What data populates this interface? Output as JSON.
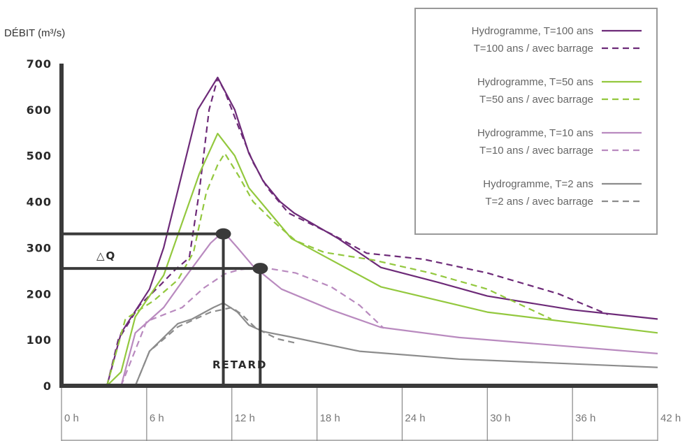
{
  "chart_data": {
    "type": "line",
    "ylabel": "DÉBIT (m³/s)",
    "xlabel": "",
    "ylim": [
      0,
      700
    ],
    "xlim": [
      0,
      42
    ],
    "yticks": [
      0,
      100,
      200,
      300,
      400,
      500,
      600,
      700
    ],
    "xticks": [
      {
        "value": 0,
        "label": "0 h"
      },
      {
        "value": 6,
        "label": "6 h"
      },
      {
        "value": 12,
        "label": "12 h"
      },
      {
        "value": 18,
        "label": "18 h"
      },
      {
        "value": 24,
        "label": "24 h"
      },
      {
        "value": 30,
        "label": "30 h"
      },
      {
        "value": 36,
        "label": "36 h"
      },
      {
        "value": 42,
        "label": "42 h"
      }
    ],
    "legend_position": "top-right",
    "grid": false,
    "series": [
      {
        "name": "Hydrogramme, T=100 ans",
        "color": "#6d2a78",
        "dash": false,
        "points": [
          [
            3.2,
            0
          ],
          [
            4.2,
            115
          ],
          [
            6.2,
            210
          ],
          [
            7.2,
            300
          ],
          [
            9.6,
            600
          ],
          [
            11.0,
            670
          ],
          [
            12.2,
            600
          ],
          [
            13.2,
            505
          ],
          [
            14.2,
            445
          ],
          [
            15.4,
            400
          ],
          [
            16.4,
            375
          ],
          [
            19.5,
            320
          ],
          [
            22.5,
            257
          ],
          [
            26.5,
            225
          ],
          [
            30.0,
            195
          ],
          [
            36.0,
            165
          ],
          [
            42.0,
            145
          ]
        ]
      },
      {
        "name": "T=100 ans / avec barrage",
        "color": "#6d2a78",
        "dash": true,
        "points": [
          [
            3.2,
            0
          ],
          [
            4.0,
            100
          ],
          [
            5.5,
            175
          ],
          [
            7.0,
            220
          ],
          [
            8.0,
            252
          ],
          [
            9.0,
            278
          ],
          [
            9.7,
            420
          ],
          [
            10.4,
            600
          ],
          [
            11.0,
            668
          ],
          [
            11.5,
            640
          ],
          [
            12.5,
            560
          ],
          [
            13.5,
            485
          ],
          [
            14.5,
            430
          ],
          [
            16.0,
            375
          ],
          [
            19.0,
            330
          ],
          [
            21.5,
            288
          ],
          [
            25.5,
            275
          ],
          [
            30.0,
            245
          ],
          [
            35.0,
            200
          ],
          [
            38.5,
            155
          ]
        ]
      },
      {
        "name": "Hydrogramme, T=50 ans",
        "color": "#93c83e",
        "dash": false,
        "points": [
          [
            3.2,
            0
          ],
          [
            4.2,
            30
          ],
          [
            5.2,
            150
          ],
          [
            7.2,
            240
          ],
          [
            9.7,
            460
          ],
          [
            11.0,
            548
          ],
          [
            12.2,
            500
          ],
          [
            13.2,
            430
          ],
          [
            14.7,
            375
          ],
          [
            16.2,
            320
          ],
          [
            17.7,
            295
          ],
          [
            22.5,
            215
          ],
          [
            30.0,
            160
          ],
          [
            42.0,
            115
          ]
        ]
      },
      {
        "name": "T=50 ans / avec barrage",
        "color": "#93c83e",
        "dash": true,
        "points": [
          [
            3.2,
            0
          ],
          [
            4.5,
            145
          ],
          [
            6.5,
            185
          ],
          [
            8.2,
            230
          ],
          [
            9.3,
            290
          ],
          [
            10.2,
            420
          ],
          [
            11.0,
            480
          ],
          [
            11.5,
            505
          ],
          [
            12.5,
            455
          ],
          [
            13.5,
            400
          ],
          [
            15.0,
            355
          ],
          [
            16.5,
            315
          ],
          [
            18.5,
            290
          ],
          [
            22.0,
            273
          ],
          [
            26.0,
            245
          ],
          [
            30.0,
            210
          ],
          [
            34.5,
            145
          ]
        ]
      },
      {
        "name": "Hydrogramme, T=10 ans",
        "color": "#b98abf",
        "dash": false,
        "points": [
          [
            4.2,
            0
          ],
          [
            5.2,
            115
          ],
          [
            7.2,
            170
          ],
          [
            8.7,
            235
          ],
          [
            10.5,
            310
          ],
          [
            11.4,
            335
          ],
          [
            12.4,
            300
          ],
          [
            13.5,
            260
          ],
          [
            15.5,
            210
          ],
          [
            19.0,
            165
          ],
          [
            22.5,
            127
          ],
          [
            28.0,
            105
          ],
          [
            42.0,
            70
          ]
        ]
      },
      {
        "name": "T=10 ans / avec barrage",
        "color": "#b98abf",
        "dash": true,
        "points": [
          [
            4.2,
            0
          ],
          [
            6.0,
            140
          ],
          [
            8.5,
            170
          ],
          [
            10.0,
            212
          ],
          [
            11.5,
            243
          ],
          [
            12.5,
            252
          ],
          [
            14.0,
            258
          ],
          [
            16.5,
            245
          ],
          [
            19.0,
            215
          ],
          [
            21.0,
            175
          ],
          [
            22.7,
            125
          ]
        ]
      },
      {
        "name": "Hydrogramme, T=2 ans",
        "color": "#8c8c8c",
        "dash": false,
        "points": [
          [
            5.2,
            0
          ],
          [
            6.2,
            75
          ],
          [
            8.2,
            135
          ],
          [
            9.2,
            145
          ],
          [
            10.7,
            170
          ],
          [
            11.4,
            180
          ],
          [
            12.4,
            160
          ],
          [
            13.2,
            132
          ],
          [
            14.2,
            118
          ],
          [
            16.0,
            107
          ],
          [
            21.0,
            75
          ],
          [
            28.0,
            58
          ],
          [
            42.0,
            40
          ]
        ]
      },
      {
        "name": "T=2 ans / avec barrage",
        "color": "#8c8c8c",
        "dash": true,
        "points": [
          [
            5.2,
            0
          ],
          [
            6.2,
            75
          ],
          [
            8.2,
            128
          ],
          [
            10.5,
            160
          ],
          [
            12.0,
            170
          ],
          [
            12.7,
            155
          ],
          [
            13.7,
            125
          ],
          [
            15.2,
            102
          ],
          [
            16.5,
            93
          ]
        ]
      }
    ],
    "annotations": {
      "delta_label": "△Q",
      "retard_label": "RETARD",
      "peak_without_dam": {
        "x": 11.4,
        "y": 330
      },
      "peak_with_dam": {
        "x": 14.0,
        "y": 255
      }
    }
  },
  "colors": {
    "axis": "#3a3a3a",
    "grid_box": "#888888",
    "legend_border": "#999999",
    "annotation_line": "#3a3a3a"
  }
}
